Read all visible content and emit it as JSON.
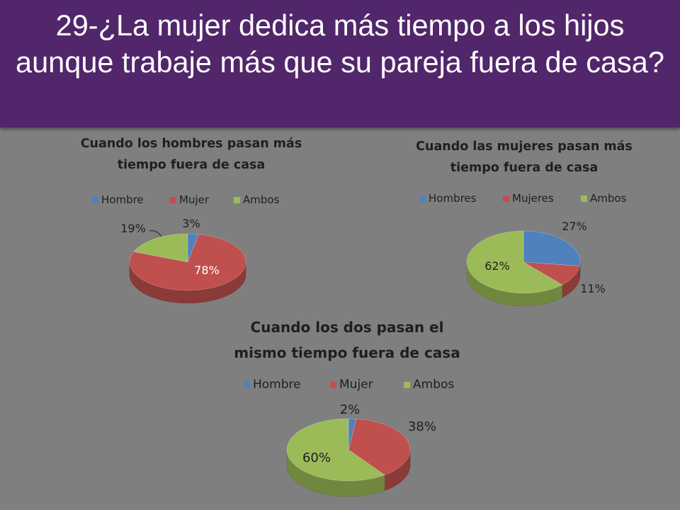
{
  "title": "29-¿La mujer dedica más tiempo a los hijos aunque trabaje más que su pareja fuera de casa?",
  "chart_data": [
    {
      "type": "pie",
      "title": [
        "Cuando los hombres pasan más",
        "tiempo fuera de casa"
      ],
      "series": [
        {
          "name": "Hombre",
          "value": 3,
          "label": "3%",
          "color": "#4f81bd"
        },
        {
          "name": "Mujer",
          "value": 78,
          "label": "78%",
          "color": "#c0504d"
        },
        {
          "name": "Ambos",
          "value": 19,
          "label": "19%",
          "color": "#9bbb59"
        }
      ],
      "legend": "top"
    },
    {
      "type": "pie",
      "title": [
        "Cuando las mujeres pasan más",
        "tiempo fuera de casa"
      ],
      "series": [
        {
          "name": "Hombres",
          "value": 27,
          "label": "27%",
          "color": "#4f81bd"
        },
        {
          "name": "Mujeres",
          "value": 11,
          "label": "11%",
          "color": "#c0504d"
        },
        {
          "name": "Ambos",
          "value": 62,
          "label": "62%",
          "color": "#9bbb59"
        }
      ],
      "legend": "top"
    },
    {
      "type": "pie",
      "title": [
        "Cuando los dos pasan el",
        "mismo tiempo fuera de casa"
      ],
      "series": [
        {
          "name": "Hombre",
          "value": 2,
          "label": "2%",
          "color": "#4f81bd"
        },
        {
          "name": "Mujer",
          "value": 38,
          "label": "38%",
          "color": "#c0504d"
        },
        {
          "name": "Ambos",
          "value": 60,
          "label": "60%",
          "color": "#9bbb59"
        }
      ],
      "legend": "top"
    }
  ]
}
